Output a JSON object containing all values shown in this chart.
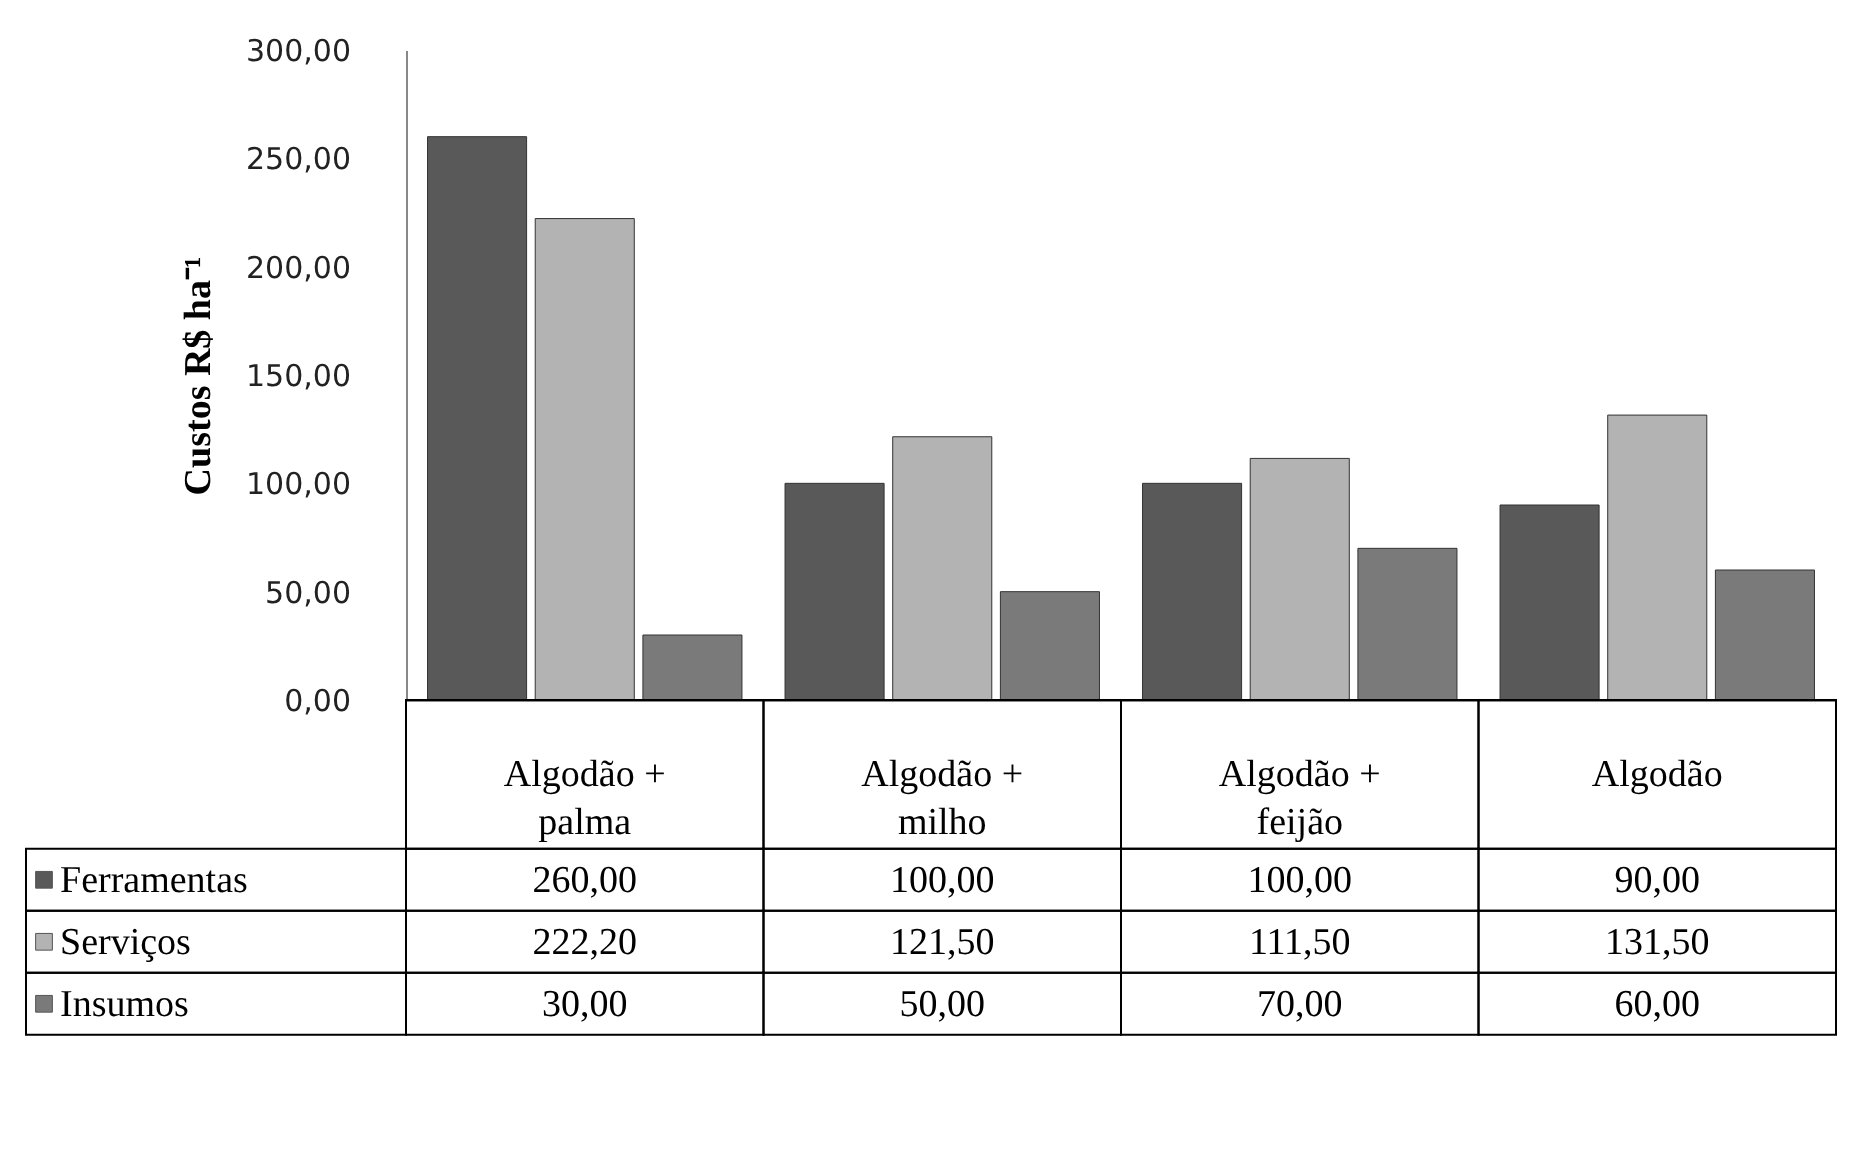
{
  "chart_data": {
    "type": "bar",
    "ylabel": "Custos R$ ha⁻¹",
    "categories": [
      "Algodão + palma",
      "Algodão + milho",
      "Algodão + feijão",
      "Algodão"
    ],
    "series": [
      {
        "name": "Ferramentas",
        "color": "#595959",
        "values": [
          260.0,
          100.0,
          100.0,
          90.0
        ],
        "value_labels": [
          "260,00",
          "100,00",
          "100,00",
          "90,00"
        ]
      },
      {
        "name": "Serviços",
        "color": "#b3b3b3",
        "values": [
          222.2,
          121.5,
          111.5,
          131.5
        ],
        "value_labels": [
          "222,20",
          "121,50",
          "111,50",
          "131,50"
        ]
      },
      {
        "name": "Insumos",
        "color": "#7a7a7a",
        "values": [
          30.0,
          50.0,
          70.0,
          60.0
        ],
        "value_labels": [
          "30,00",
          "50,00",
          "70,00",
          "60,00"
        ]
      }
    ],
    "ylim": [
      0,
      300
    ],
    "yticks": [
      {
        "value": 0,
        "label": "0,00"
      },
      {
        "value": 50,
        "label": "50,00"
      },
      {
        "value": 100,
        "label": "100,00"
      },
      {
        "value": 150,
        "label": "150,00"
      },
      {
        "value": 200,
        "label": "200,00"
      },
      {
        "value": 250,
        "label": "250,00"
      },
      {
        "value": 300,
        "label": "300,00"
      }
    ],
    "legend": "bottom",
    "grid": false
  }
}
